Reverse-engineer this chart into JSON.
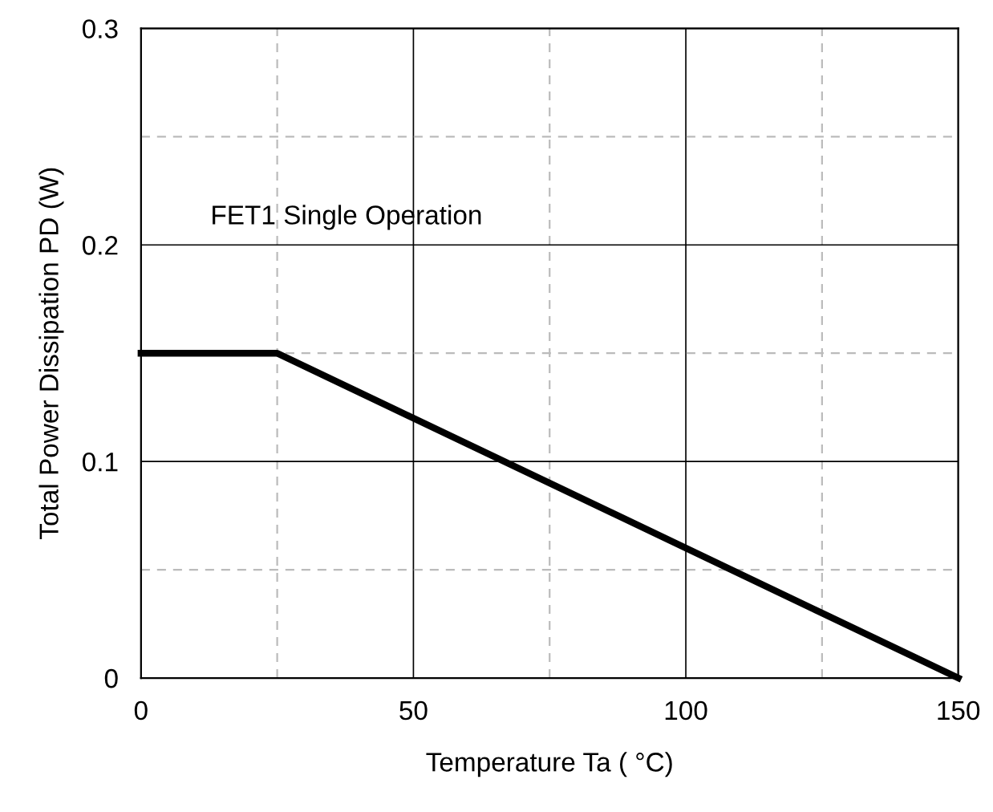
{
  "chart_data": {
    "type": "line",
    "xlabel": "Temperature Ta ( °C)",
    "ylabel": "Total Power Dissipation PD (W)",
    "annotations": [
      "FET1 Single Operation"
    ],
    "series": [
      {
        "x": [
          0,
          25,
          150
        ],
        "values": [
          0.15,
          0.15,
          0
        ],
        "color": "#000000"
      }
    ],
    "xlim": [
      0,
      150
    ],
    "ylim": [
      0,
      0.3
    ],
    "xticks": [
      0,
      {
        "value": 25,
        "label": null
      },
      50,
      {
        "value": 75,
        "label": null
      },
      100,
      {
        "value": 125,
        "label": null
      },
      150
    ],
    "yticks": [
      0,
      {
        "value": 0.05,
        "label": null
      },
      0.1,
      {
        "value": 0.15,
        "label": null
      },
      0.2,
      {
        "value": 0.25,
        "label": null
      },
      0.3
    ],
    "grid": true,
    "marker": "none",
    "line_style": "solid"
  }
}
